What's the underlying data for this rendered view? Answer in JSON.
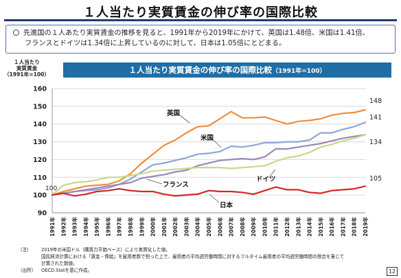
{
  "page": {
    "title": "１人当たり実質賃金の伸び率の国際比較",
    "page_number": "12"
  },
  "summary": {
    "line1": "先進国の１人あたり実質賃金の推移を見ると、1991年から2019年にかけて、英国は1.48倍、米国は1.41倍、",
    "line2": "フランスとドイツは1.34倍に上昇しているのに対して、日本は1.05倍にとどまる。"
  },
  "banner": {
    "title": "１人当たり実質賃金の伸び率の国際比較",
    "note": "（1991年=100）"
  },
  "notes": [
    {
      "key": "（注）",
      "text": "2019年の米国ドル（購買力平価ベース）により実質化した値。"
    },
    {
      "key": "",
      "text": "国民経済計算における「賃金・俸給」を雇用者数で割った上で、雇用者の平均週労働時間に対するフルタイム雇用者の平均週労働時間の割合を乗じて"
    },
    {
      "key": "",
      "text": "計算された数値。"
    },
    {
      "key": "（出所）",
      "text": "OECD.Statを基に作成。"
    }
  ],
  "colors": {
    "uk": "#f08c3c",
    "us": "#8fa4d6",
    "france": "#9a86b8",
    "germany": "#c8d88a",
    "japan": "#d22828",
    "banner": "#1f6ea6",
    "title_rule": "#1f3b6e"
  },
  "chart_data": {
    "type": "line",
    "ylabel": "１人当たり\n実質賃金\n（1991年=100）",
    "ylim": [
      90,
      160
    ],
    "yticks": [
      90,
      100,
      110,
      120,
      130,
      140,
      150,
      160
    ],
    "grid": true,
    "x": [
      "1991年",
      "1992年",
      "1993年",
      "1994年",
      "1995年",
      "1996年",
      "1997年",
      "1998年",
      "1999年",
      "2000年",
      "2001年",
      "2002年",
      "2003年",
      "2004年",
      "2005年",
      "2006年",
      "2007年",
      "2008年",
      "2009年",
      "2010年",
      "2011年",
      "2012年",
      "2013年",
      "2014年",
      "2015年",
      "2016年",
      "2017年",
      "2018年",
      "2019年"
    ],
    "series": [
      {
        "name": "英国",
        "color": "#f08c3c",
        "end_label": "148",
        "values": [
          100,
          102,
          103.5,
          105,
          105.5,
          106,
          108,
          112,
          118,
          123,
          128,
          131,
          135,
          138.5,
          139,
          143,
          147,
          143.5,
          143.5,
          144,
          142,
          140,
          141.5,
          142,
          143,
          145,
          146,
          146.5,
          148
        ]
      },
      {
        "name": "米国",
        "color": "#8fa4d6",
        "end_label": "141",
        "values": [
          100,
          101,
          102,
          102.5,
          103,
          104,
          106,
          109,
          113,
          117,
          118,
          119.5,
          121,
          123,
          123.5,
          124.5,
          127.5,
          127,
          128,
          129.5,
          129.5,
          130,
          130,
          131,
          135,
          135,
          137,
          138.5,
          141
        ]
      },
      {
        "name": "フランス",
        "color": "#9a86b8",
        "end_label": "",
        "values": [
          100,
          101,
          102,
          103,
          104,
          105,
          106,
          107,
          109.5,
          110.5,
          111.5,
          113,
          114,
          116.5,
          118,
          119.5,
          120,
          120.5,
          120,
          121.5,
          126,
          126,
          127,
          128,
          129,
          130.5,
          132,
          133,
          134
        ]
      },
      {
        "name": "ドイツ",
        "color": "#c8d88a",
        "end_label": "134",
        "values": [
          100,
          105.5,
          107,
          107.5,
          108.5,
          110,
          110,
          111,
          112,
          113.5,
          114,
          114.5,
          115,
          115.5,
          115.5,
          115.5,
          115,
          115.5,
          116,
          116.5,
          119,
          121,
          122,
          124,
          127,
          128.5,
          130.5,
          132,
          134
        ]
      },
      {
        "name": "日本",
        "color": "#d22828",
        "end_label": "105",
        "values": [
          100,
          101,
          99.5,
          100.5,
          102,
          102.5,
          103.5,
          102.5,
          102,
          102,
          100.5,
          99.5,
          100,
          100.5,
          102.5,
          102,
          102,
          101.5,
          100.5,
          102.5,
          104.5,
          103,
          103,
          101.5,
          101,
          102.5,
          103,
          103.5,
          105
        ]
      }
    ],
    "start_label": "100"
  }
}
